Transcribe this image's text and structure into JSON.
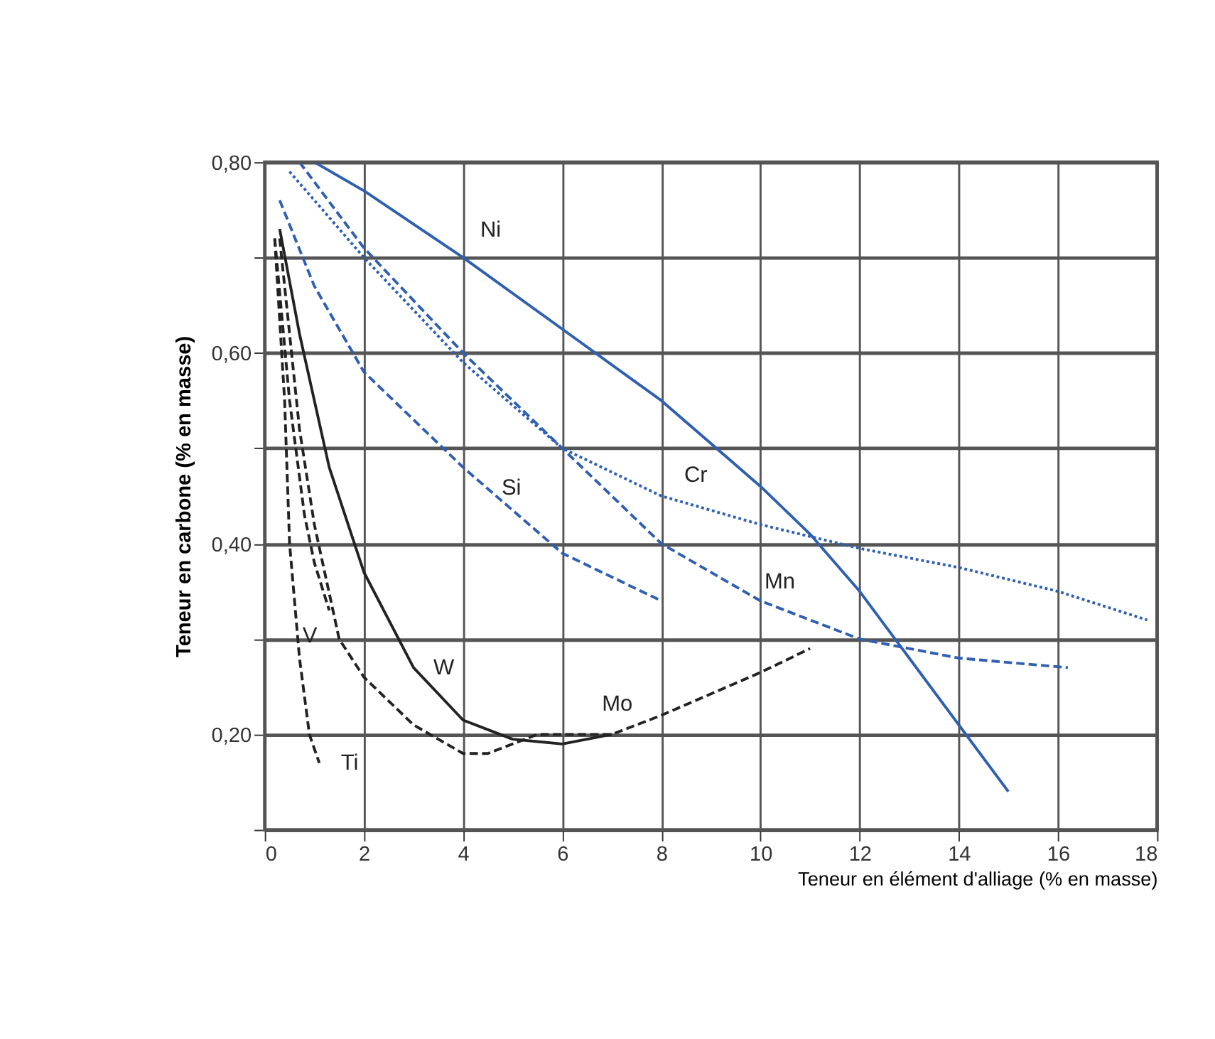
{
  "chart_data": {
    "type": "line",
    "xlabel": "Teneur en élément d'alliage (% en masse)",
    "ylabel": "Teneur en carbone (% en masse)",
    "xlim": [
      0,
      18
    ],
    "ylim": [
      0.1,
      0.8
    ],
    "xticks": [
      0,
      2,
      4,
      6,
      8,
      10,
      12,
      14,
      16,
      18
    ],
    "yticks": [
      {
        "value": 0.1,
        "label": null
      },
      {
        "value": 0.2,
        "label": "0,20"
      },
      {
        "value": 0.3,
        "label": null
      },
      {
        "value": 0.4,
        "label": "0,40"
      },
      {
        "value": 0.5,
        "label": null
      },
      {
        "value": 0.6,
        "label": "0,60"
      },
      {
        "value": 0.7,
        "label": null
      },
      {
        "value": 0.8,
        "label": "0,80"
      }
    ],
    "grid": true,
    "marker": "none",
    "series": [
      {
        "name": "Ni",
        "color": "#2f5fb0",
        "line_style": "solid",
        "x": [
          1,
          2,
          4,
          6,
          8,
          10,
          11,
          12,
          13,
          14,
          15
        ],
        "values": [
          0.8,
          0.77,
          0.7,
          0.625,
          0.55,
          0.46,
          0.41,
          0.35,
          0.28,
          0.21,
          0.14
        ]
      },
      {
        "name": "Cr",
        "color": "#2f5fb0",
        "line_style": "dotted",
        "x": [
          0.5,
          2,
          4,
          6,
          8,
          10,
          12,
          14,
          16,
          17.8
        ],
        "values": [
          0.79,
          0.7,
          0.59,
          0.5,
          0.45,
          0.42,
          0.395,
          0.375,
          0.35,
          0.32
        ]
      },
      {
        "name": "Mn",
        "color": "#2f5fb0",
        "line_style": "dashed",
        "x": [
          0.7,
          2,
          4,
          6,
          8,
          10,
          12,
          14,
          16.2
        ],
        "values": [
          0.8,
          0.71,
          0.6,
          0.5,
          0.4,
          0.34,
          0.3,
          0.28,
          0.27
        ]
      },
      {
        "name": "Si",
        "color": "#2f5fb0",
        "line_style": "dashed",
        "x": [
          0.3,
          1,
          2,
          4,
          6,
          8
        ],
        "values": [
          0.76,
          0.67,
          0.58,
          0.48,
          0.39,
          0.34
        ]
      },
      {
        "name": "W",
        "color": "#222222",
        "line_style": "solid",
        "x": [
          0.3,
          0.7,
          1.3,
          2,
          3,
          4,
          5,
          6,
          7
        ],
        "values": [
          0.73,
          0.62,
          0.48,
          0.37,
          0.27,
          0.215,
          0.195,
          0.19,
          0.2
        ]
      },
      {
        "name": "Mo",
        "color": "#222222",
        "line_style": "dashed",
        "x": [
          0.3,
          0.7,
          1,
          1.5,
          2,
          3,
          4,
          4.5,
          5.5,
          7,
          8,
          10,
          11
        ],
        "values": [
          0.72,
          0.52,
          0.42,
          0.3,
          0.26,
          0.21,
          0.18,
          0.18,
          0.2,
          0.2,
          0.22,
          0.265,
          0.29
        ]
      },
      {
        "name": "V",
        "color": "#222222",
        "line_style": "dashed",
        "x": [
          0.2,
          0.5,
          0.8,
          1,
          1.3
        ],
        "values": [
          0.72,
          0.55,
          0.43,
          0.38,
          0.33
        ]
      },
      {
        "name": "Ti",
        "color": "#222222",
        "line_style": "dashed",
        "x": [
          0.2,
          0.4,
          0.5,
          0.7,
          0.9,
          1.1
        ],
        "values": [
          0.72,
          0.55,
          0.4,
          0.28,
          0.2,
          0.17
        ]
      }
    ]
  }
}
